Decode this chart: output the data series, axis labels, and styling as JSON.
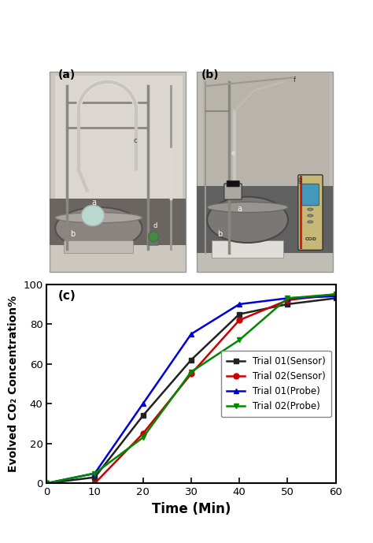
{
  "title_a": "(a)",
  "title_b": "(b)",
  "title_c": "(c)",
  "xlabel": "Time (Min)",
  "ylabel": "Evolved CO₂ Concentration%",
  "xlim": [
    0,
    60
  ],
  "ylim": [
    0,
    100
  ],
  "xticks": [
    0,
    10,
    20,
    30,
    40,
    50,
    60
  ],
  "yticks": [
    0,
    20,
    40,
    60,
    80,
    100
  ],
  "series": [
    {
      "label": "Trial 01(Sensor)",
      "color": "#222222",
      "marker": "s",
      "x": [
        0,
        10,
        20,
        30,
        40,
        50,
        60
      ],
      "y": [
        0,
        3,
        34,
        62,
        85,
        90,
        93
      ]
    },
    {
      "label": "Trial 02(Sensor)",
      "color": "#cc0000",
      "marker": "o",
      "x": [
        0,
        10,
        20,
        30,
        40,
        50,
        60
      ],
      "y": [
        0,
        0,
        25,
        55,
        82,
        92,
        95
      ]
    },
    {
      "label": "Trial 01(Probe)",
      "color": "#0000dd",
      "marker": "^",
      "x": [
        0,
        10,
        20,
        30,
        40,
        50,
        60
      ],
      "y": [
        0,
        5,
        40,
        75,
        90,
        93,
        94
      ]
    },
    {
      "label": "Trial 02(Probe)",
      "color": "#008800",
      "marker": "v",
      "x": [
        0,
        10,
        20,
        30,
        40,
        50,
        60
      ],
      "y": [
        0,
        5,
        23,
        56,
        72,
        93,
        95
      ]
    }
  ],
  "legend_loc": "center right",
  "fig_width": 4.74,
  "fig_height": 6.89,
  "photo_height_ratio": 1.05,
  "chart_height_ratio": 1.0,
  "photo_a_bg": [
    220,
    215,
    205
  ],
  "photo_b_bg": [
    200,
    195,
    185
  ],
  "photo_border_color": "#cccccc"
}
